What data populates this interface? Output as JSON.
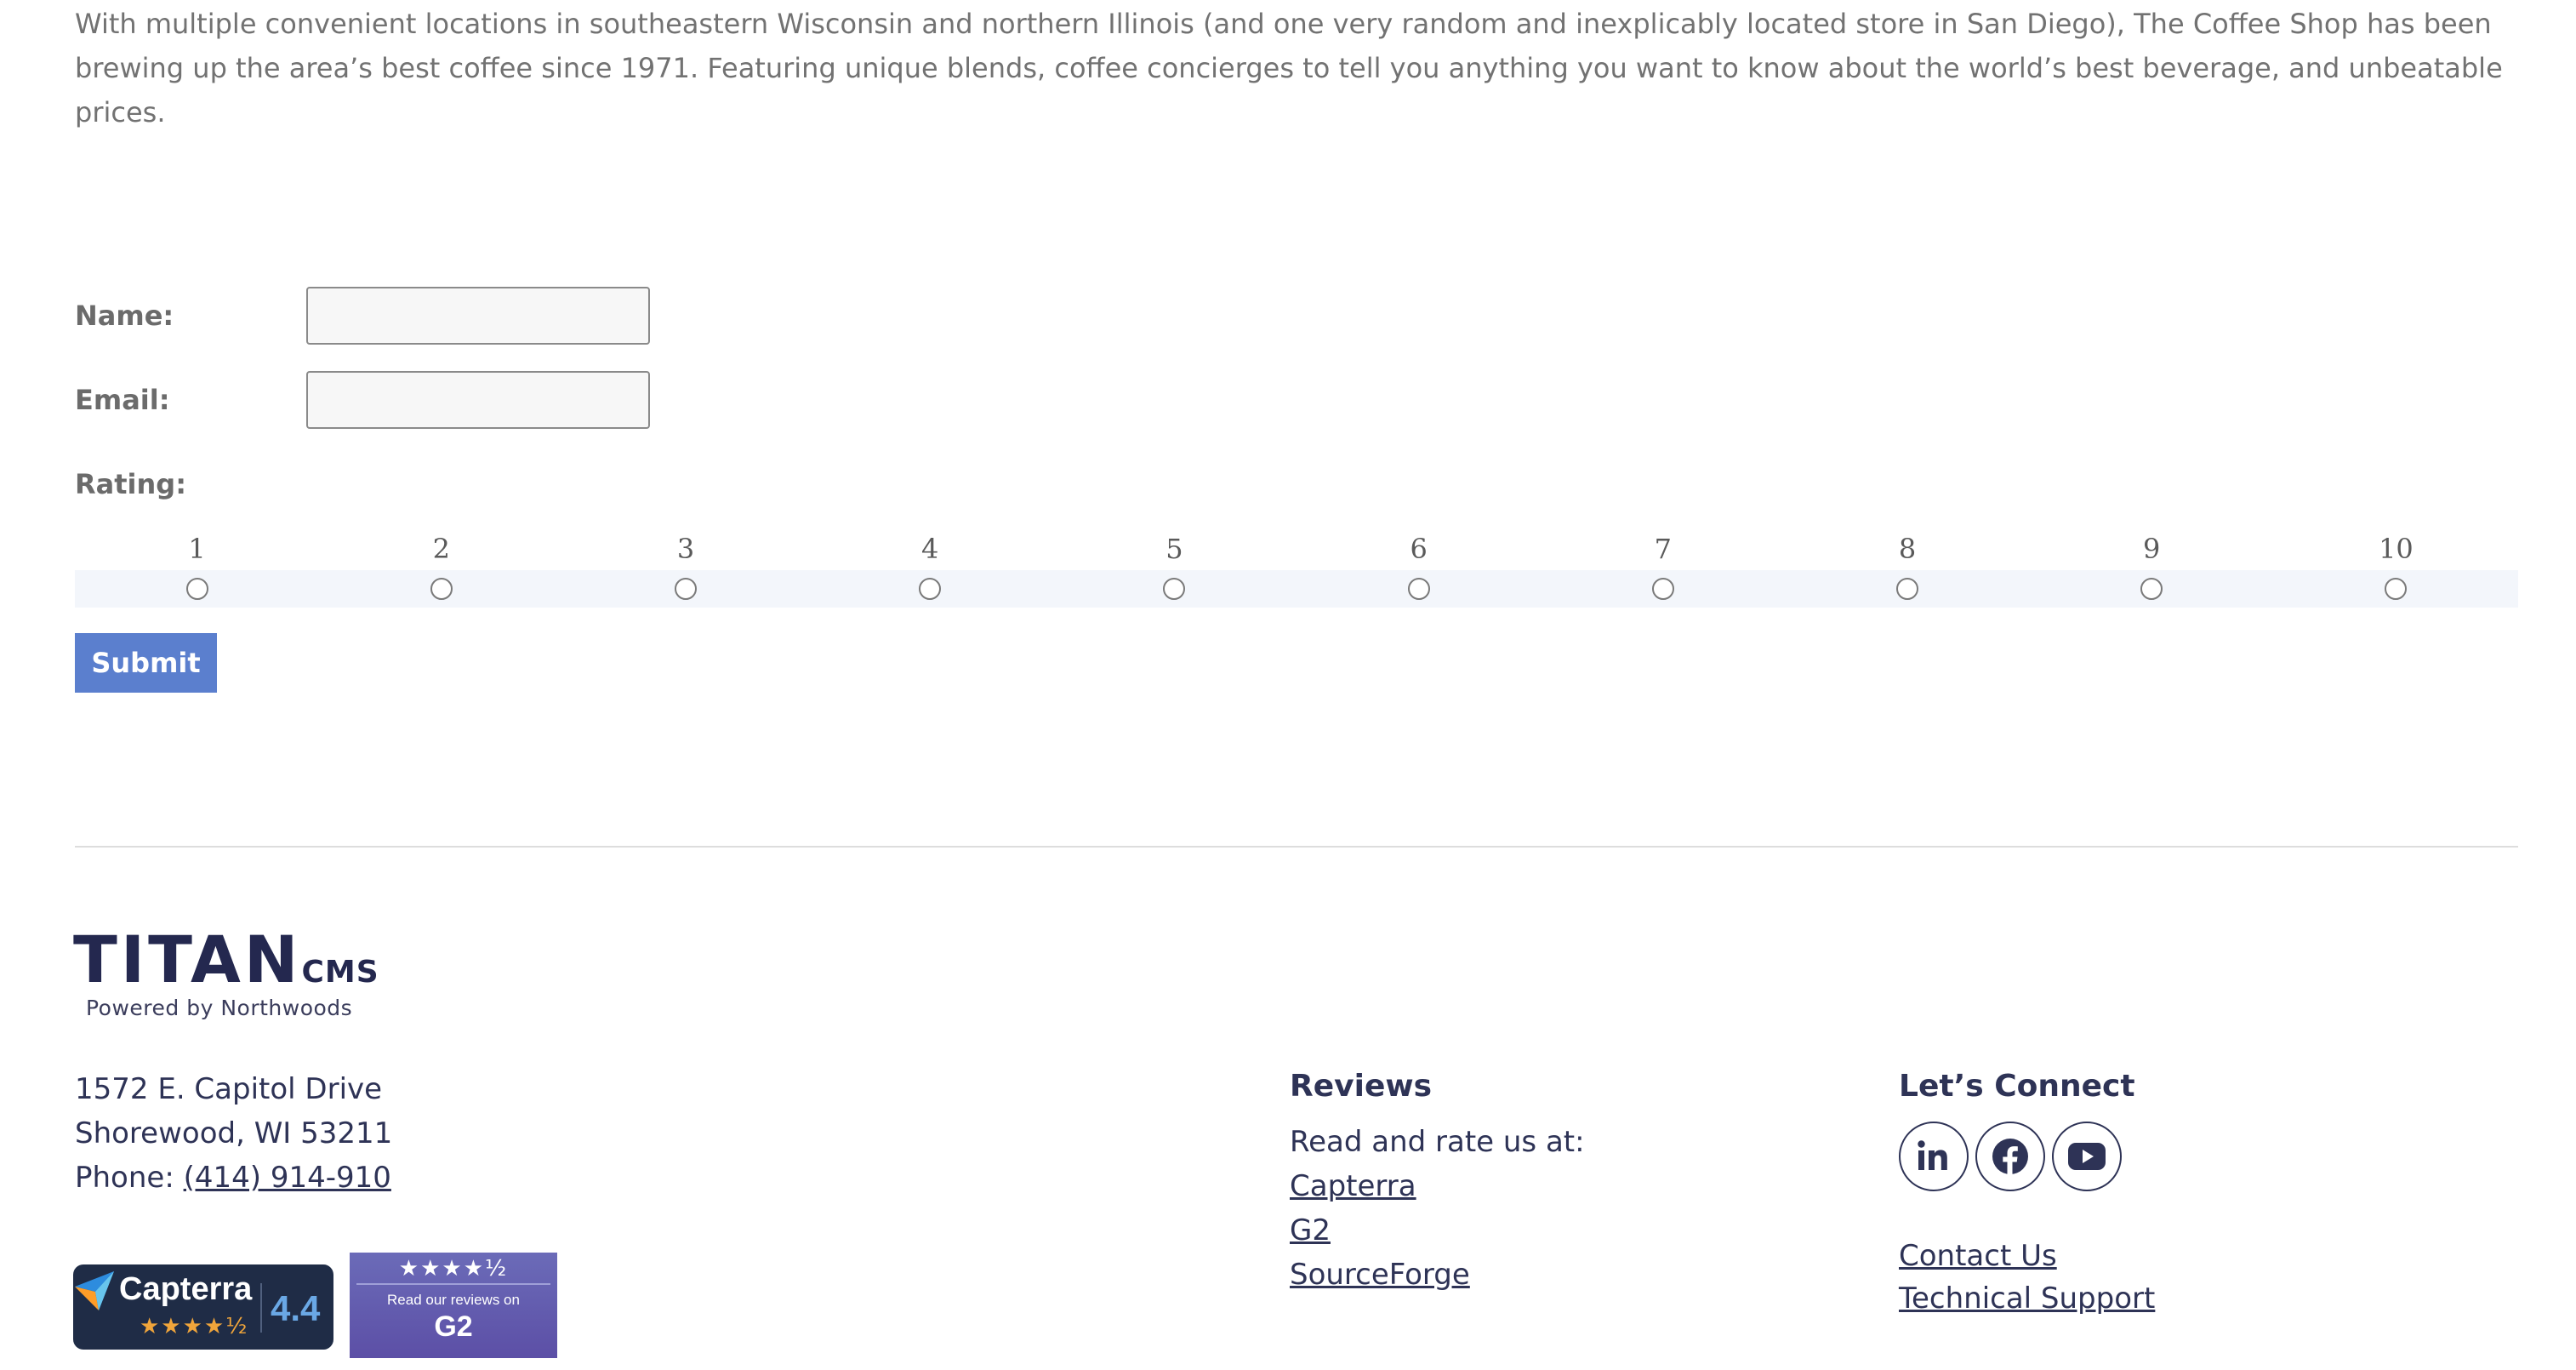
{
  "intro": {
    "line1": "With multiple convenient locations in southeastern Wisconsin and northern Illinois (and one very random and inexplicably located store in San Diego), The Coffee Shop has been",
    "line2": "brewing up the area’s best coffee since 1971. Featuring unique blends, coffee concierges to tell you anything you want to know about the world’s best beverage, and unbeatable",
    "line3": "prices."
  },
  "form": {
    "name_label": "Name:",
    "name_value": "",
    "email_label": "Email:",
    "email_value": "",
    "rating_label": "Rating:",
    "rating_options": [
      "1",
      "2",
      "3",
      "4",
      "5",
      "6",
      "7",
      "8",
      "9",
      "10"
    ],
    "submit_label": "Submit"
  },
  "footer": {
    "logo": {
      "main": "TITAN",
      "suffix": "CMS",
      "tagline": "Powered by Northwoods"
    },
    "address": {
      "street": "1572 E. Capitol Drive",
      "city": "Shorewood, WI 53211",
      "phone_label": "Phone: ",
      "phone_number": "(414) 914-910"
    },
    "reviews": {
      "heading": "Reviews",
      "intro": "Read and rate us at:",
      "links": [
        "Capterra",
        "G2",
        "SourceForge"
      ]
    },
    "connect": {
      "heading": "Let’s Connect",
      "social_icons": [
        "linkedin-icon",
        "facebook-icon",
        "youtube-icon"
      ],
      "links": [
        "Contact Us",
        "Technical Support"
      ]
    },
    "badges": {
      "capterra": {
        "name": "Capterra",
        "rating": "4.4",
        "stars_value": 4.5
      },
      "g2": {
        "text": "Read our reviews on",
        "logo": "G2",
        "stars_value": 4.5
      }
    },
    "colors": {
      "navy": "#2e3356",
      "submit_blue": "#5b7fce",
      "g2_purple": "#5c4fa6",
      "capterra_bg": "#1f2c46"
    }
  }
}
